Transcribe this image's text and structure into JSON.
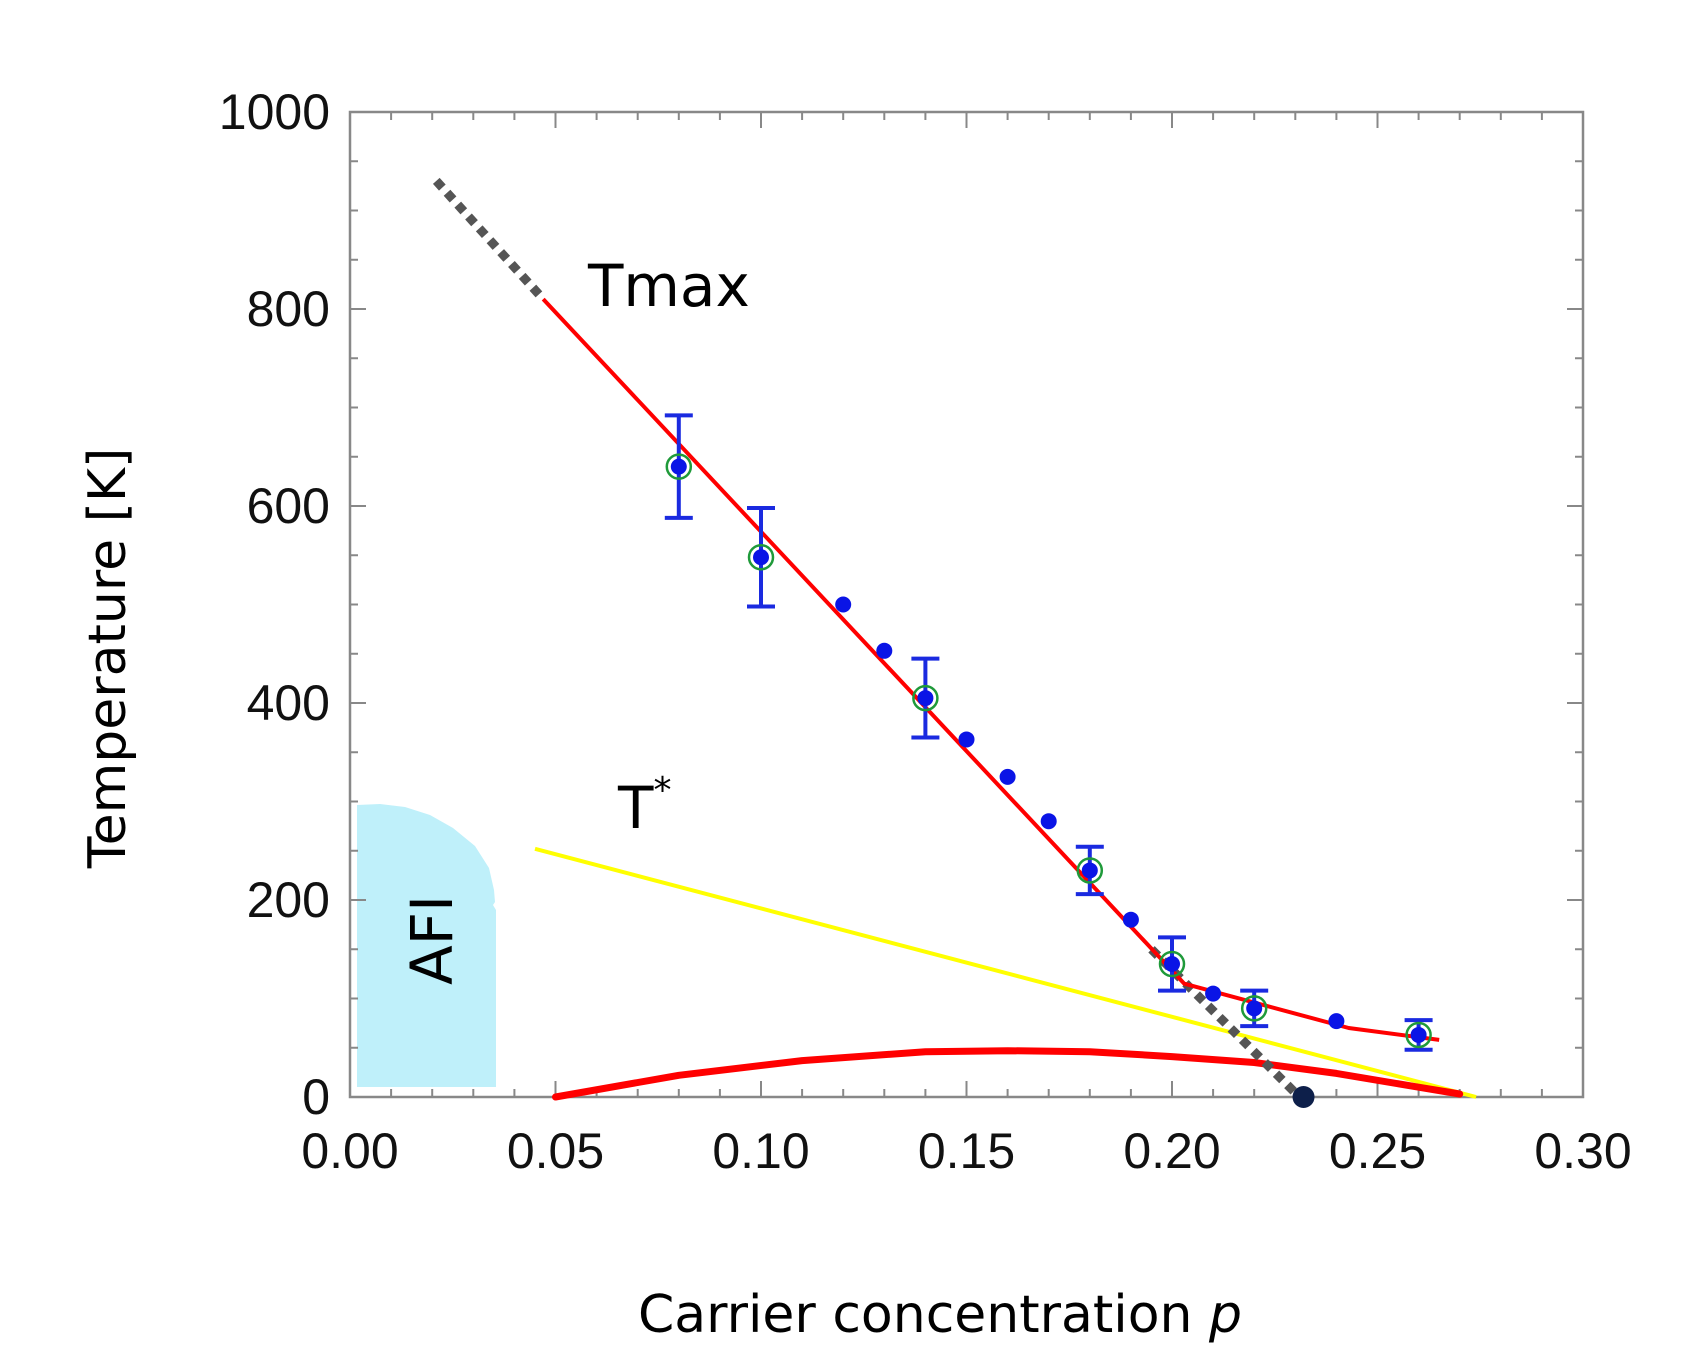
{
  "chart_data": {
    "type": "scatter",
    "xlabel": "Carrier concentration",
    "xlabel_var": "p",
    "ylabel": "Temperature [K]",
    "xlim": [
      0.0,
      0.3
    ],
    "ylim": [
      0,
      1000
    ],
    "x_ticks": [
      "0.00",
      "0.05",
      "0.10",
      "0.15",
      "0.20",
      "0.25",
      "0.30"
    ],
    "y_ticks": [
      "0",
      "200",
      "400",
      "600",
      "800",
      "1000"
    ],
    "grid": false,
    "colors": {
      "points": "#0a14e6",
      "error_bars": "#1a2ae0",
      "open_circles": "#1f9a3a",
      "tmax_fit": "#ff0000",
      "dotted_extrapolation": "#555555",
      "t_star": "#ffff00",
      "dome": "#ff0000",
      "afi_region": "#bff0fa",
      "endpoint": "#0d1f4a"
    },
    "series": [
      {
        "kind": "points_with_error",
        "x": [
          0.08,
          0.1,
          0.14,
          0.18,
          0.2,
          0.22,
          0.26
        ],
        "y": [
          640,
          548,
          405,
          230,
          135,
          90,
          63
        ],
        "err": [
          52,
          50,
          40,
          24,
          27,
          18,
          15
        ]
      },
      {
        "kind": "points",
        "x": [
          0.12,
          0.13,
          0.15,
          0.16,
          0.17,
          0.19,
          0.21,
          0.24
        ],
        "y": [
          500,
          453,
          363,
          325,
          280,
          180,
          105,
          77
        ]
      },
      {
        "kind": "line",
        "x": [
          0.047,
          0.203,
          0.243,
          0.265
        ],
        "y": [
          810,
          115,
          70,
          58
        ]
      },
      {
        "kind": "dotted",
        "x": [
          0.021,
          0.047
        ],
        "y": [
          930,
          810
        ]
      },
      {
        "kind": "dotted",
        "x": [
          0.195,
          0.231
        ],
        "y": [
          150,
          0
        ]
      },
      {
        "kind": "line",
        "x": [
          0.045,
          0.274
        ],
        "y": [
          252,
          0
        ]
      },
      {
        "kind": "dome",
        "x": [
          0.05,
          0.08,
          0.11,
          0.14,
          0.16,
          0.18,
          0.2,
          0.22,
          0.24,
          0.26,
          0.27
        ],
        "y": [
          0,
          22,
          37,
          46,
          47,
          46,
          41,
          35,
          24,
          10,
          3
        ]
      },
      {
        "kind": "endpoint",
        "x": [
          0.232
        ],
        "y": [
          0
        ]
      }
    ],
    "annotations": [
      {
        "text": "Tmax"
      },
      {
        "text": "T",
        "sup": "*"
      },
      {
        "text": "AFI"
      }
    ]
  }
}
